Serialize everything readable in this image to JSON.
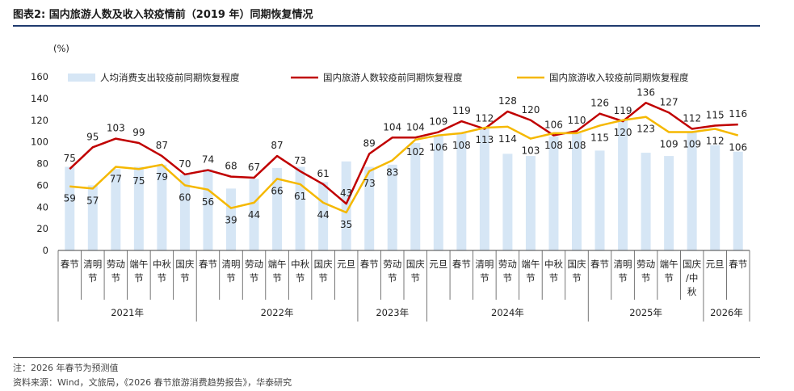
{
  "header": {
    "title": "图表2:  国内旅游人数及收入较疫情前（2019 年）同期恢复情况"
  },
  "footer": {
    "note": "注：2026 年春节为预测值",
    "source": "资料来源：Wind，文旅局，《2026 春节旅游消费趋势报告》，华泰研究"
  },
  "chart_data": {
    "type": "bar+line",
    "ylabel": "(%)",
    "ylim": [
      0,
      160
    ],
    "yticks": [
      0,
      20,
      40,
      60,
      80,
      100,
      120,
      140,
      160
    ],
    "categories": [
      "春节",
      "清明节",
      "劳动节",
      "端午节",
      "中秋节",
      "国庆节",
      "春节",
      "清明节",
      "劳动节",
      "端午节",
      "中秋节",
      "国庆节",
      "元旦",
      "春节",
      "劳动节",
      "国庆节",
      "元旦",
      "春节",
      "清明节",
      "劳动节",
      "端午节",
      "中秋节",
      "国庆节",
      "春节",
      "清明节",
      "劳动节",
      "端午节",
      "国庆/中秋",
      "元旦",
      "春节"
    ],
    "category_lines": [
      [
        "春节"
      ],
      [
        "清明",
        "节"
      ],
      [
        "劳动",
        "节"
      ],
      [
        "端午",
        "节"
      ],
      [
        "中秋",
        "节"
      ],
      [
        "国庆",
        "节"
      ],
      [
        "春节"
      ],
      [
        "清明",
        "节"
      ],
      [
        "劳动",
        "节"
      ],
      [
        "端午",
        "节"
      ],
      [
        "中秋",
        "节"
      ],
      [
        "国庆",
        "节"
      ],
      [
        "元旦"
      ],
      [
        "春节"
      ],
      [
        "劳动",
        "节"
      ],
      [
        "国庆",
        "节"
      ],
      [
        "元旦"
      ],
      [
        "春节"
      ],
      [
        "清明",
        "节"
      ],
      [
        "劳动",
        "节"
      ],
      [
        "端午",
        "节"
      ],
      [
        "中秋",
        "节"
      ],
      [
        "国庆",
        "节"
      ],
      [
        "春节"
      ],
      [
        "清明",
        "节"
      ],
      [
        "劳动",
        "节"
      ],
      [
        "端午",
        "节"
      ],
      [
        "国庆",
        "/中",
        "秋"
      ],
      [
        "元旦"
      ],
      [
        "春节"
      ]
    ],
    "year_groups": [
      {
        "label": "2021年",
        "start": 0,
        "count": 6
      },
      {
        "label": "2022年",
        "start": 6,
        "count": 7
      },
      {
        "label": "2023年",
        "start": 13,
        "count": 3
      },
      {
        "label": "2024年",
        "start": 16,
        "count": 7
      },
      {
        "label": "2025年",
        "start": 23,
        "count": 5
      },
      {
        "label": "2026年",
        "start": 28,
        "count": 2
      }
    ],
    "series": [
      {
        "name": "人均消费支出较疫前同期恢复程度",
        "kind": "bar",
        "color": "#d6e6f5",
        "values": [
          77,
          60,
          75,
          77,
          79,
          70,
          75,
          57,
          66,
          76,
          77,
          63,
          82,
          77,
          79,
          99,
          106,
          108,
          113,
          89,
          87,
          105,
          108,
          92,
          120,
          90,
          87,
          109,
          97,
          91
        ]
      },
      {
        "name": "国内旅游人数较疫前同期恢复程度",
        "kind": "line",
        "color": "#c00000",
        "values": [
          75,
          95,
          103,
          99,
          87,
          70,
          74,
          68,
          67,
          87,
          73,
          61,
          43,
          89,
          104,
          104,
          109,
          119,
          112,
          128,
          120,
          106,
          110,
          126,
          119,
          136,
          127,
          112,
          115,
          116
        ],
        "labels_position": "above"
      },
      {
        "name": "国内旅游收入较疫前同期恢复程度",
        "kind": "line",
        "color": "#f5b800",
        "values": [
          59,
          57,
          77,
          75,
          79,
          60,
          56,
          39,
          44,
          66,
          61,
          44,
          35,
          73,
          83,
          102,
          106,
          108,
          113,
          114,
          103,
          108,
          108,
          115,
          120,
          123,
          109,
          109,
          112,
          106
        ],
        "labels_position": "below"
      }
    ],
    "legend_position": "top"
  }
}
